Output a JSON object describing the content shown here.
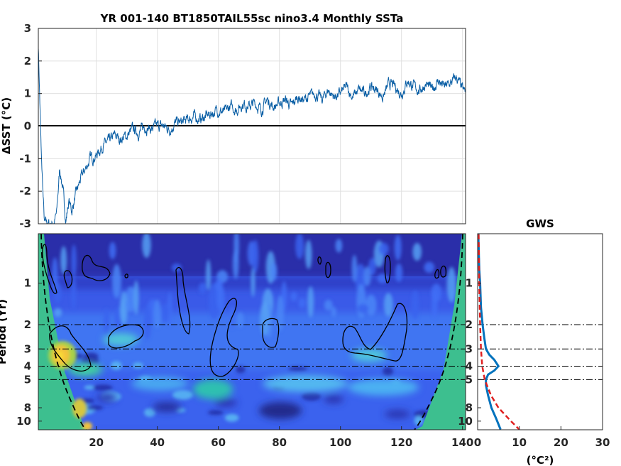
{
  "chart_data": [
    {
      "type": "line",
      "title": "YR 001-140 BT1850TAIL55sc nino3.4 Monthly SSTa",
      "xlabel": "",
      "ylabel": "ΔSST (°C)",
      "xlim": [
        1,
        141
      ],
      "ylim": [
        -3,
        3
      ],
      "y_ticks": [
        "-3",
        "-2",
        "-1",
        "0",
        "1",
        "2",
        "3"
      ],
      "grid": true,
      "line_color": "#0b5fa5",
      "zero_line_color": "#000000",
      "series": [
        {
          "x": [
            1,
            2,
            3,
            4,
            5,
            6,
            7,
            8,
            9,
            10,
            11,
            12,
            13,
            14,
            15,
            16,
            18,
            20,
            22,
            24,
            26,
            28,
            30,
            32,
            34,
            36,
            38,
            40,
            42,
            44,
            46,
            48,
            50,
            52,
            54,
            56,
            58,
            60,
            62,
            64,
            66,
            68,
            70,
            72,
            74,
            76,
            78,
            80,
            82,
            84,
            86,
            88,
            90,
            92,
            94,
            96,
            98,
            100,
            102,
            104,
            106,
            108,
            110,
            112,
            114,
            116,
            118,
            120,
            122,
            124,
            126,
            128,
            130,
            132,
            134,
            136,
            138,
            140,
            141
          ],
          "y": [
            2.5,
            -1.0,
            -3.0,
            -3.0,
            -3.0,
            -3.0,
            -2.7,
            -1.3,
            -1.9,
            -2.9,
            -2.3,
            -2.6,
            -2.2,
            -1.9,
            -1.6,
            -1.4,
            -1.0,
            -0.9,
            -0.6,
            -0.5,
            -0.3,
            -0.4,
            -0.3,
            -0.1,
            -0.2,
            0.0,
            -0.1,
            0.0,
            0.0,
            -0.1,
            0.1,
            0.1,
            0.2,
            0.3,
            0.2,
            0.3,
            0.4,
            0.5,
            0.4,
            0.6,
            0.5,
            0.7,
            0.6,
            0.7,
            0.5,
            0.8,
            0.6,
            0.7,
            0.8,
            0.6,
            0.9,
            0.8,
            0.9,
            1.0,
            0.8,
            1.1,
            0.9,
            1.0,
            1.2,
            0.9,
            1.1,
            1.0,
            1.2,
            1.1,
            0.9,
            1.3,
            1.2,
            1.0,
            1.4,
            1.2,
            1.1,
            1.3,
            1.1,
            1.4,
            1.2,
            1.3,
            1.5,
            1.1,
            1.0
          ]
        }
      ]
    },
    {
      "type": "heatmap",
      "title": "",
      "xlabel": "",
      "ylabel": "Period (Yr)",
      "xlim": [
        1,
        141
      ],
      "x_ticks": [
        "20",
        "40",
        "60",
        "80",
        "100",
        "120",
        "140"
      ],
      "y_ticks": [
        "1",
        "2",
        "3",
        "4",
        "5",
        "8",
        "10"
      ],
      "y_scale": "log",
      "reference_periods": [
        2,
        3,
        4,
        5
      ],
      "colormap": "parula",
      "cone_of_influence": "dashed black",
      "significance_contours": "solid black"
    },
    {
      "type": "line",
      "title": "GWS",
      "xlabel": "(°C²)",
      "ylabel": "",
      "xlim": [
        0,
        30
      ],
      "x_ticks": [
        "0",
        "10",
        "20",
        "30"
      ],
      "y_ticks": [
        "1",
        "2",
        "3",
        "4",
        "5",
        "8",
        "10"
      ],
      "y_scale": "log",
      "series": [
        {
          "style": "solid",
          "color": "#0072bd",
          "period": [
            0.3,
            0.5,
            0.8,
            1.0,
            1.5,
            2.0,
            2.5,
            3.0,
            3.3,
            3.6,
            4.0,
            4.3,
            4.6,
            5.0,
            5.5,
            6.5,
            8.0,
            9.5,
            11.5
          ],
          "power": [
            0.1,
            0.2,
            0.4,
            0.6,
            0.8,
            1.2,
            1.6,
            2.0,
            2.8,
            4.0,
            5.0,
            4.0,
            2.5,
            2.0,
            2.0,
            2.5,
            3.3,
            4.4,
            5.5
          ]
        },
        {
          "style": "dashed",
          "color": "#e02020",
          "period": [
            0.3,
            0.5,
            0.8,
            1.0,
            1.5,
            2.0,
            3.0,
            4.0,
            5.0,
            6.5,
            8.0,
            10.0,
            11.5
          ],
          "power": [
            0.2,
            0.25,
            0.35,
            0.4,
            0.5,
            0.6,
            0.8,
            1.1,
            1.7,
            3.2,
            5.0,
            8.0,
            10.0
          ]
        }
      ]
    }
  ]
}
